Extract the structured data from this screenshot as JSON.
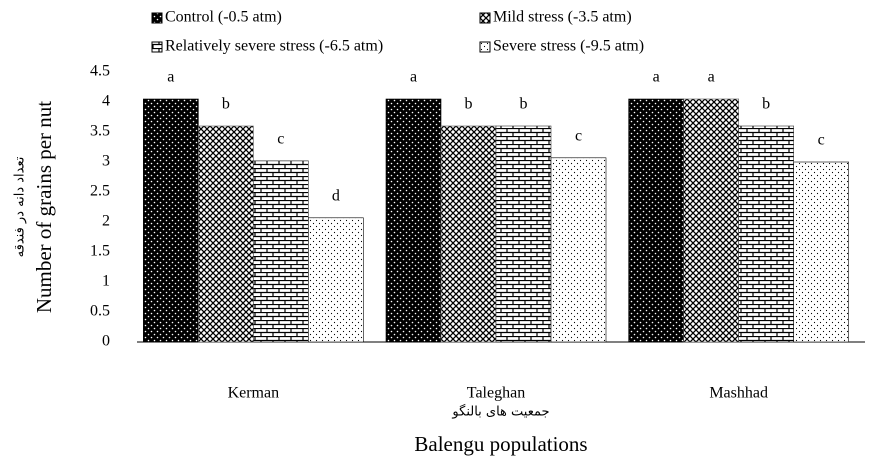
{
  "chart_data": {
    "type": "bar",
    "y_label": "Number of grains per nut",
    "y_label_fa": "تعداد دانه در فندقه",
    "x_label": "Balengu populations",
    "x_label_fa": "جمعیت های بالنگو",
    "categories": [
      "Kerman",
      "Taleghan",
      "Mashhad"
    ],
    "series": [
      {
        "name": "Control (-0.5 atm)",
        "color": "#000000",
        "values": [
          4.05,
          4.05,
          4.05
        ],
        "significance": [
          "a",
          "a",
          "a"
        ]
      },
      {
        "name": "Mild stress (-3.5 atm)",
        "color": "#555555",
        "values": [
          3.6,
          3.6,
          4.05
        ],
        "significance": [
          "b",
          "b",
          "a"
        ]
      },
      {
        "name": "Relatively  severe stress (-6.5 atm)",
        "color": "#333333",
        "values": [
          3.02,
          3.6,
          3.6
        ],
        "significance": [
          "c",
          "b",
          "b"
        ]
      },
      {
        "name": "Severe stress (-9.5 atm)",
        "color": "#ffffff",
        "values": [
          2.07,
          3.07,
          3.0
        ],
        "significance": [
          "d",
          "c",
          "c"
        ]
      }
    ],
    "ylim": [
      0,
      4.5
    ],
    "yticks": [
      0,
      0.5,
      1,
      1.5,
      2,
      2.5,
      3,
      3.5,
      4,
      4.5
    ],
    "grid": false,
    "legend": "top"
  }
}
